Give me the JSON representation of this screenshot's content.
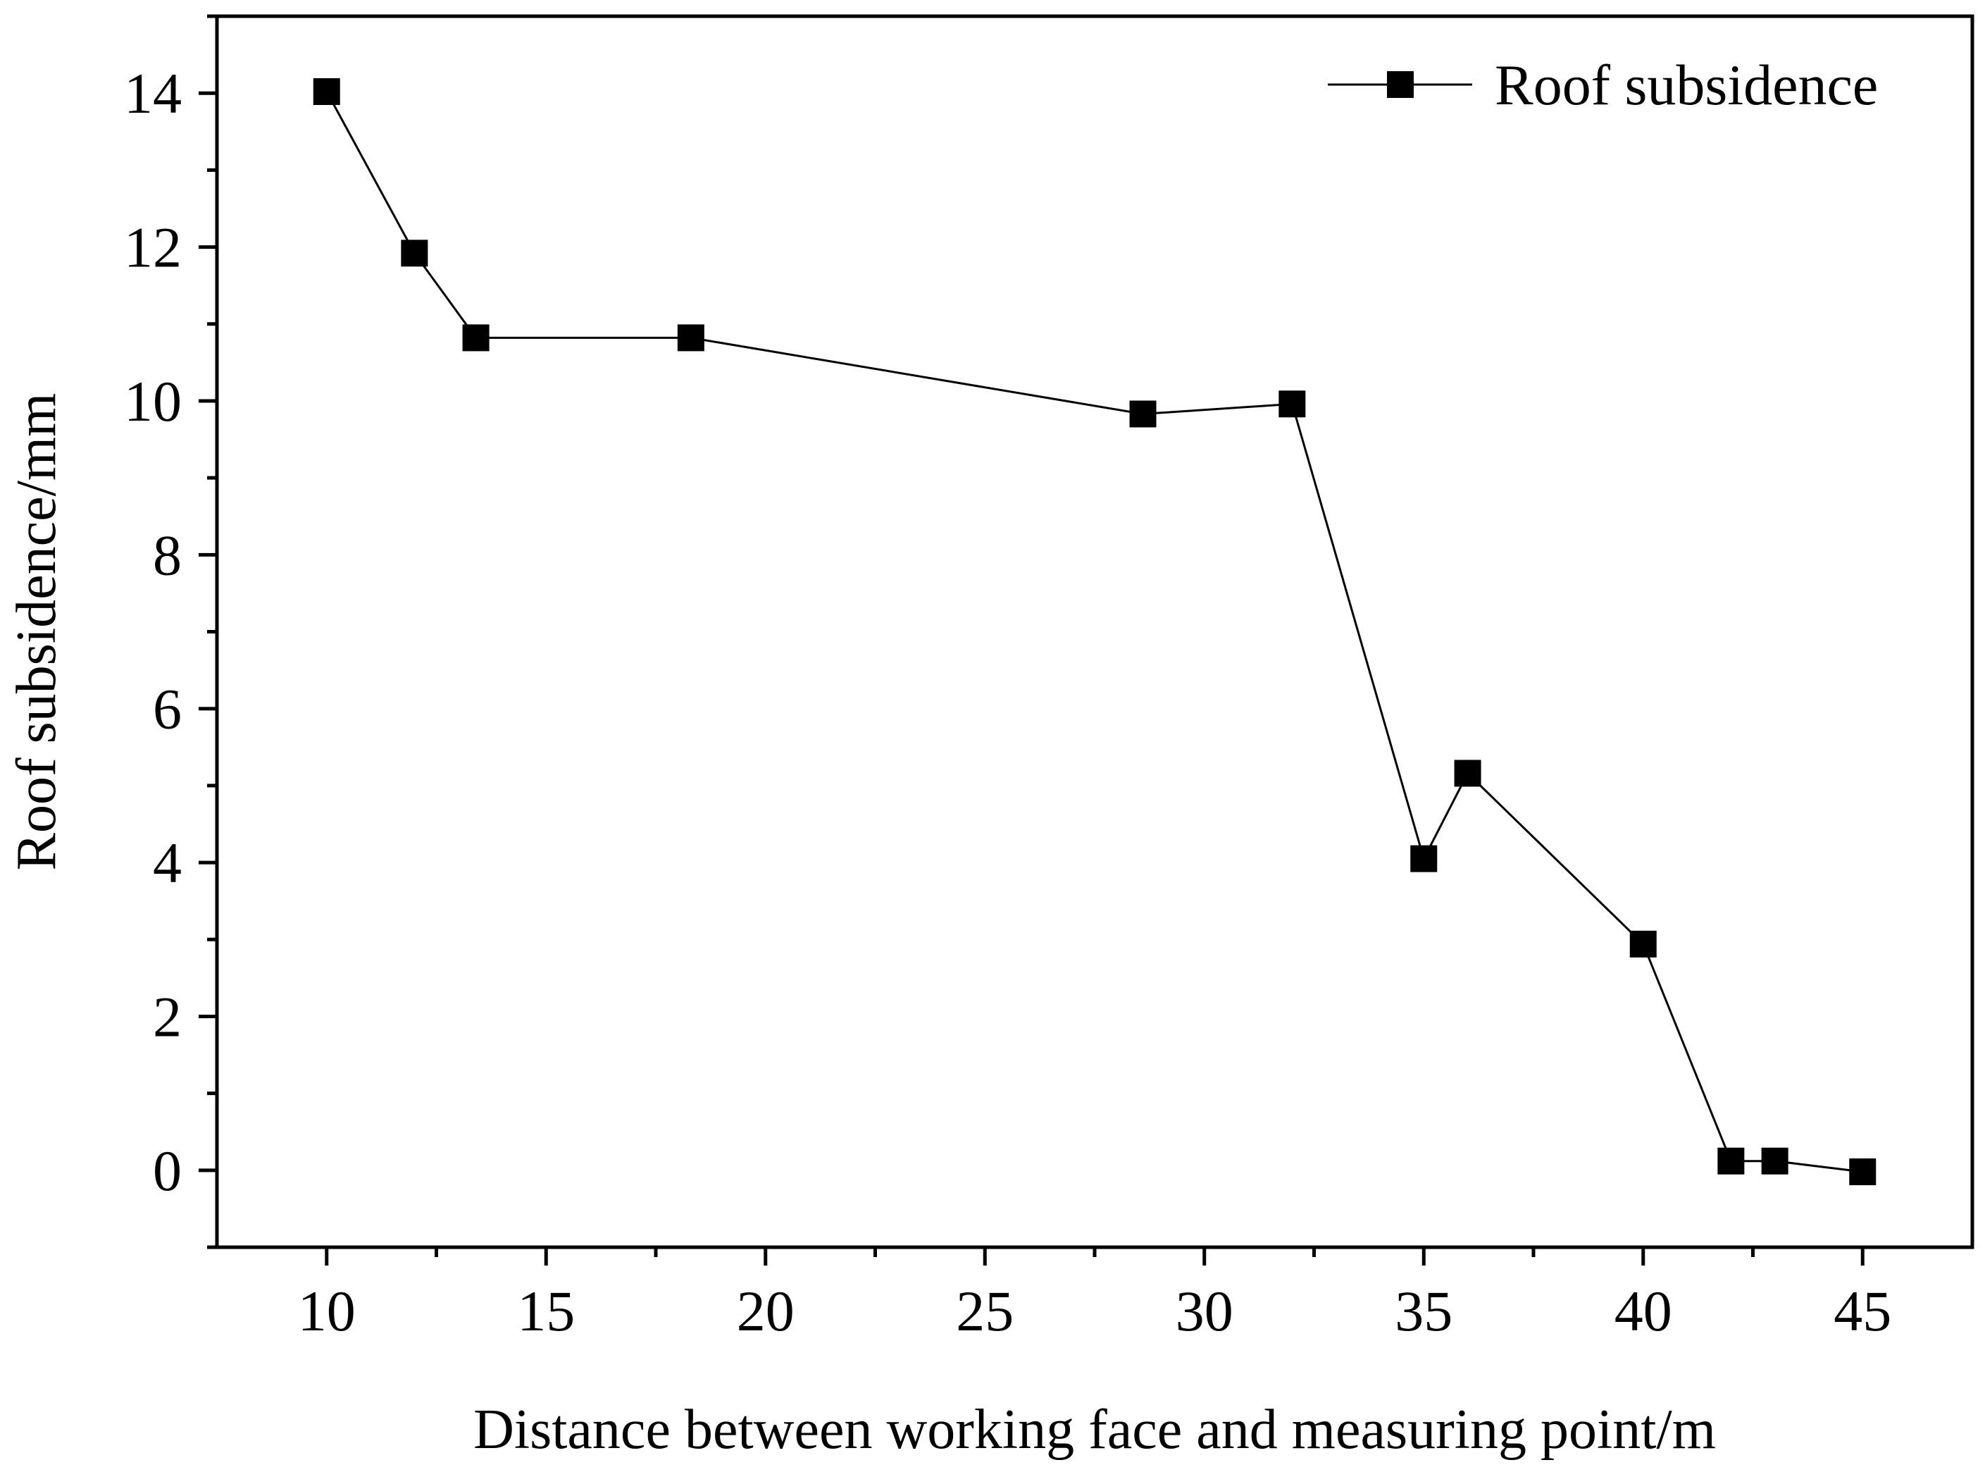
{
  "chart_data": {
    "type": "line",
    "title": "",
    "xlabel": "Distance between working face and measuring point/m",
    "ylabel": "Roof subsidence/mm",
    "xlim": [
      7.5,
      47.5
    ],
    "ylim": [
      -1,
      15
    ],
    "x_major_ticks": [
      10,
      15,
      20,
      25,
      30,
      35,
      40,
      45
    ],
    "x_minor_ticks": [
      12.5,
      17.5,
      22.5,
      27.5,
      32.5,
      37.5,
      42.5
    ],
    "y_major_ticks": [
      0,
      2,
      4,
      6,
      8,
      10,
      12,
      14
    ],
    "y_minor_ticks": [
      -1,
      1,
      3,
      5,
      7,
      9,
      11,
      13,
      15
    ],
    "x_tick_labels": [
      "10",
      "15",
      "20",
      "25",
      "30",
      "35",
      "40",
      "45"
    ],
    "y_tick_labels": [
      "0",
      "2",
      "4",
      "6",
      "8",
      "10",
      "12",
      "14"
    ],
    "grid": false,
    "legend_position": "top-right",
    "series": [
      {
        "name": "Roof subsidence",
        "marker": "square",
        "color": "#000000",
        "x": [
          10,
          12,
          13.4,
          18.3,
          28.6,
          32,
          35,
          36,
          40,
          42,
          43,
          45
        ],
        "y": [
          14.02,
          11.92,
          10.82,
          10.82,
          9.83,
          9.96,
          4.05,
          5.16,
          2.94,
          0.12,
          0.12,
          -0.02
        ]
      }
    ]
  }
}
